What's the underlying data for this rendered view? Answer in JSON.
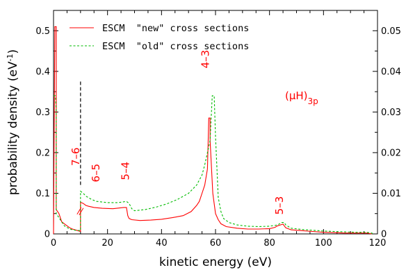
{
  "chart_data": {
    "type": "line",
    "xlabel": "kinetic energy (eV)",
    "ylabel_left": "probability density (eV",
    "ylabel_left_sup": "-1",
    "ylabel_left_close": ")",
    "xlim": [
      0,
      120
    ],
    "ylim_left": [
      0,
      0.55
    ],
    "ylim_right": [
      0,
      0.055
    ],
    "x_ticks": [
      "0",
      "20",
      "40",
      "60",
      "80",
      "100",
      "120"
    ],
    "y_ticks_left": [
      "0",
      "0.1",
      "0.2",
      "0.3",
      "0.4",
      "0.5"
    ],
    "y_ticks_right": [
      "0",
      "0.01",
      "0.02",
      "0.03",
      "0.04",
      "0.05"
    ],
    "colors": {
      "new": "#ff0000",
      "old": "#00bb00",
      "marker": "#000000",
      "annotation": "#ff0000"
    },
    "legend_position": "top-left",
    "series": [
      {
        "name": "ESCM  \"new\" cross sections",
        "style": "solid",
        "points": [
          [
            0,
            0
          ],
          [
            0.5,
            0.51
          ],
          [
            1,
            0.51
          ],
          [
            1,
            0.06
          ],
          [
            2,
            0.05
          ],
          [
            3,
            0.03
          ],
          [
            4,
            0.025
          ],
          [
            5,
            0.02
          ],
          [
            6,
            0.015
          ],
          [
            7,
            0.012
          ],
          [
            8,
            0.01
          ],
          [
            9,
            0.008
          ],
          [
            10,
            0.006
          ],
          [
            10,
            0.078
          ],
          [
            11,
            0.075
          ],
          [
            12,
            0.07
          ],
          [
            13,
            0.068
          ],
          [
            15,
            0.065
          ],
          [
            18,
            0.063
          ],
          [
            22,
            0.062
          ],
          [
            26,
            0.065
          ],
          [
            27,
            0.065
          ],
          [
            27.5,
            0.045
          ],
          [
            28,
            0.038
          ],
          [
            29,
            0.035
          ],
          [
            32,
            0.033
          ],
          [
            36,
            0.034
          ],
          [
            40,
            0.036
          ],
          [
            44,
            0.04
          ],
          [
            48,
            0.045
          ],
          [
            51,
            0.055
          ],
          [
            53,
            0.07
          ],
          [
            54,
            0.08
          ],
          [
            55,
            0.1
          ],
          [
            56,
            0.12
          ],
          [
            57,
            0.16
          ],
          [
            57.5,
            0.285
          ],
          [
            58,
            0.285
          ],
          [
            58,
            0.23
          ],
          [
            59,
            0.1
          ],
          [
            60,
            0.05
          ],
          [
            61,
            0.035
          ],
          [
            62,
            0.025
          ],
          [
            64,
            0.018
          ],
          [
            68,
            0.014
          ],
          [
            72,
            0.012
          ],
          [
            76,
            0.012
          ],
          [
            80,
            0.013
          ],
          [
            82,
            0.016
          ],
          [
            83,
            0.02
          ],
          [
            84,
            0.022
          ],
          [
            85,
            0.024
          ],
          [
            86,
            0.015
          ],
          [
            88,
            0.01
          ],
          [
            92,
            0.008
          ],
          [
            96,
            0.006
          ],
          [
            100,
            0.004
          ],
          [
            104,
            0.003
          ],
          [
            108,
            0.002
          ],
          [
            112,
            0.002
          ],
          [
            116,
            0.002
          ],
          [
            118,
            0
          ]
        ]
      },
      {
        "name": "ESCM  \"old\" cross sections",
        "style": "dashed",
        "points": [
          [
            0,
            0.34
          ],
          [
            0.7,
            0.34
          ],
          [
            1,
            0.3
          ],
          [
            1,
            0.05
          ],
          [
            2,
            0.04
          ],
          [
            4,
            0.02
          ],
          [
            6,
            0.012
          ],
          [
            8,
            0.009
          ],
          [
            10,
            0.008
          ],
          [
            10,
            0.105
          ],
          [
            11,
            0.1
          ],
          [
            12,
            0.093
          ],
          [
            14,
            0.085
          ],
          [
            16,
            0.08
          ],
          [
            20,
            0.077
          ],
          [
            24,
            0.077
          ],
          [
            27,
            0.08
          ],
          [
            28,
            0.075
          ],
          [
            29,
            0.062
          ],
          [
            30,
            0.057
          ],
          [
            34,
            0.06
          ],
          [
            38,
            0.066
          ],
          [
            42,
            0.074
          ],
          [
            46,
            0.085
          ],
          [
            50,
            0.1
          ],
          [
            53,
            0.12
          ],
          [
            55,
            0.145
          ],
          [
            56,
            0.17
          ],
          [
            57,
            0.2
          ],
          [
            58,
            0.23
          ],
          [
            58.8,
            0.34
          ],
          [
            59.5,
            0.34
          ],
          [
            60,
            0.24
          ],
          [
            61,
            0.09
          ],
          [
            62,
            0.055
          ],
          [
            63,
            0.038
          ],
          [
            65,
            0.028
          ],
          [
            68,
            0.022
          ],
          [
            72,
            0.019
          ],
          [
            76,
            0.018
          ],
          [
            80,
            0.019
          ],
          [
            83,
            0.022
          ],
          [
            84.5,
            0.028
          ],
          [
            85.5,
            0.028
          ],
          [
            86,
            0.022
          ],
          [
            88,
            0.014
          ],
          [
            92,
            0.011
          ],
          [
            96,
            0.009
          ],
          [
            100,
            0.007
          ],
          [
            104,
            0.006
          ],
          [
            108,
            0.005
          ],
          [
            112,
            0.004
          ],
          [
            116,
            0.004
          ],
          [
            118,
            0.002
          ],
          [
            118,
            0
          ]
        ]
      }
    ],
    "marker_x": 10,
    "marker_y_top": 0.375,
    "annotations": [
      {
        "text": "7–6",
        "x": 9.5,
        "y": 0.19
      },
      {
        "text": "6–5",
        "x": 17,
        "y": 0.15
      },
      {
        "text": "5–4",
        "x": 28,
        "y": 0.155
      },
      {
        "text": "4–3",
        "x": 57.5,
        "y": 0.43
      },
      {
        "text": "5–3",
        "x": 85,
        "y": 0.07
      }
    ],
    "label": {
      "text": "(μH)",
      "sub": "3p"
    }
  }
}
